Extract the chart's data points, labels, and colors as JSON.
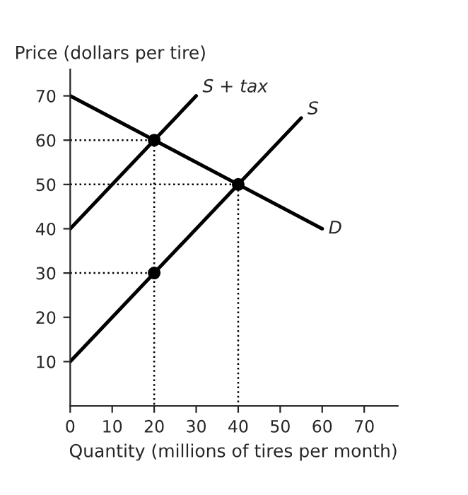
{
  "chart_data": {
    "type": "line",
    "ylabel": "Price (dollars per tire)",
    "xlabel": "Quantity (millions of tires per month)",
    "xlim": [
      0,
      78
    ],
    "ylim": [
      0,
      76
    ],
    "xticks": [
      0,
      10,
      20,
      30,
      40,
      50,
      60,
      70
    ],
    "yticks": [
      10,
      20,
      30,
      40,
      50,
      60,
      70
    ],
    "grid": false,
    "legend": false,
    "series": [
      {
        "name": "S + tax",
        "color": "#000000",
        "x": [
          0,
          30
        ],
        "values": [
          40,
          70
        ],
        "line_style": "solid",
        "marker": "none"
      },
      {
        "name": "S",
        "color": "#000000",
        "x": [
          0,
          55
        ],
        "values": [
          10,
          65
        ],
        "line_style": "solid",
        "marker": "none"
      },
      {
        "name": "D",
        "color": "#000000",
        "x": [
          0,
          60
        ],
        "values": [
          70,
          40
        ],
        "line_style": "solid",
        "marker": "none"
      },
      {
        "color": "#000000",
        "x": [
          0,
          20,
          20
        ],
        "values": [
          60,
          60,
          0
        ],
        "line_style": "dotted",
        "marker": "none"
      },
      {
        "color": "#000000",
        "x": [
          0,
          40,
          40
        ],
        "values": [
          50,
          50,
          0
        ],
        "line_style": "dotted",
        "marker": "none"
      },
      {
        "color": "#000000",
        "x": [
          0,
          20
        ],
        "values": [
          30,
          30
        ],
        "line_style": "dotted",
        "marker": "none"
      },
      {
        "type": "scatter",
        "color": "#000000",
        "x": [
          20,
          40,
          20
        ],
        "values": [
          60,
          50,
          30
        ],
        "marker": "circle"
      }
    ]
  }
}
